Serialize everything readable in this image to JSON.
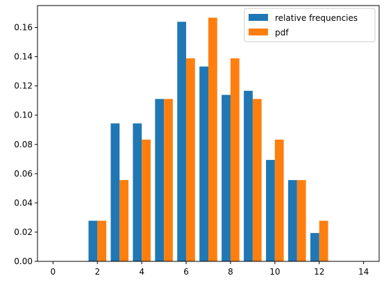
{
  "chart_data": {
    "type": "bar",
    "title": "",
    "xlabel": "",
    "ylabel": "",
    "x": [
      2,
      3,
      4,
      5,
      6,
      7,
      8,
      9,
      10,
      11,
      12
    ],
    "series": [
      {
        "name": "relative frequencies",
        "color": "#1f77b4",
        "values": [
          0.0278,
          0.0944,
          0.0944,
          0.1111,
          0.1639,
          0.1333,
          0.1139,
          0.1167,
          0.0694,
          0.0556,
          0.0194
        ]
      },
      {
        "name": "pdf",
        "color": "#ff7f0e",
        "values": [
          0.0278,
          0.0556,
          0.0833,
          0.1111,
          0.1389,
          0.1667,
          0.1389,
          0.1111,
          0.0833,
          0.0556,
          0.0278
        ]
      }
    ],
    "xlim": [
      -0.7,
      14.7
    ],
    "ylim": [
      0,
      0.175
    ],
    "xticks": [
      "0",
      "2",
      "4",
      "6",
      "8",
      "10",
      "12",
      "14"
    ],
    "yticks": [
      "0.00",
      "0.02",
      "0.04",
      "0.06",
      "0.08",
      "0.10",
      "0.12",
      "0.14",
      "0.16"
    ],
    "grid": false,
    "legend_position": "upper right"
  }
}
